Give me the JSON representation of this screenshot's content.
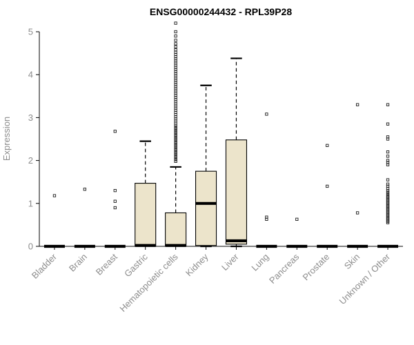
{
  "chart_data": {
    "type": "boxplot",
    "title": "ENSG00000244432 - RPL39P28",
    "ylabel": "Expression",
    "xlabel": "",
    "ylim": [
      0,
      5
    ],
    "yticks": [
      0,
      1,
      2,
      3,
      4,
      5
    ],
    "grid": false,
    "legend": false,
    "categories": [
      "Bladder",
      "Brain",
      "Breast",
      "Gastric",
      "Hematopoietic cells",
      "Kidney",
      "Liver",
      "Lung",
      "Pancreas",
      "Prostate",
      "Skin",
      "Unknown / Other"
    ],
    "style": {
      "box_fill": "#ece4cb",
      "box_stroke": "#000000",
      "axis_color": "#000000",
      "label_color": "#8c8c8c",
      "title_color": "#000000",
      "outlier_color": "#1a1a1a"
    },
    "boxes": [
      {
        "category": "Bladder",
        "q1": 0,
        "median": 0,
        "q3": 0,
        "whisker_low": 0,
        "whisker_high": 0,
        "outliers": [
          1.18
        ]
      },
      {
        "category": "Brain",
        "q1": 0,
        "median": 0,
        "q3": 0,
        "whisker_low": 0,
        "whisker_high": 0,
        "outliers": [
          1.33
        ]
      },
      {
        "category": "Breast",
        "q1": 0,
        "median": 0,
        "q3": 0,
        "whisker_low": 0,
        "whisker_high": 0,
        "outliers": [
          0.9,
          1.05,
          1.3,
          2.68
        ]
      },
      {
        "category": "Gastric",
        "q1": 0,
        "median": 0.02,
        "q3": 1.47,
        "whisker_low": 0,
        "whisker_high": 2.45,
        "outliers": []
      },
      {
        "category": "Hematopoietic cells",
        "q1": 0,
        "median": 0.02,
        "q3": 0.78,
        "whisker_low": 0,
        "whisker_high": 1.85,
        "outliers": [
          1.98,
          2.02,
          2.06,
          2.1,
          2.14,
          2.18,
          2.22,
          2.26,
          2.3,
          2.34,
          2.38,
          2.42,
          2.46,
          2.5,
          2.54,
          2.58,
          2.62,
          2.66,
          2.7,
          2.74,
          2.78,
          2.82,
          2.87,
          2.92,
          2.97,
          3.02,
          3.07,
          3.12,
          3.17,
          3.22,
          3.27,
          3.32,
          3.37,
          3.42,
          3.47,
          3.52,
          3.57,
          3.62,
          3.67,
          3.72,
          3.77,
          3.82,
          3.87,
          3.92,
          3.97,
          4.02,
          4.07,
          4.12,
          4.17,
          4.22,
          4.27,
          4.32,
          4.37,
          4.42,
          4.47,
          4.52,
          4.58,
          4.65,
          4.72,
          4.8,
          4.9,
          5.0,
          5.2
        ]
      },
      {
        "category": "Kidney",
        "q1": 0.02,
        "median": 1.0,
        "q3": 1.75,
        "whisker_low": 0,
        "whisker_high": 3.75,
        "outliers": []
      },
      {
        "category": "Liver",
        "q1": 0.05,
        "median": 0.13,
        "q3": 2.48,
        "whisker_low": 0,
        "whisker_high": 4.38,
        "outliers": []
      },
      {
        "category": "Lung",
        "q1": 0,
        "median": 0,
        "q3": 0,
        "whisker_low": 0,
        "whisker_high": 0,
        "outliers": [
          0.63,
          0.68,
          3.08
        ]
      },
      {
        "category": "Pancreas",
        "q1": 0,
        "median": 0,
        "q3": 0,
        "whisker_low": 0,
        "whisker_high": 0,
        "outliers": [
          0.63
        ]
      },
      {
        "category": "Prostate",
        "q1": 0,
        "median": 0,
        "q3": 0,
        "whisker_low": 0,
        "whisker_high": 0,
        "outliers": [
          1.4,
          2.35
        ]
      },
      {
        "category": "Skin",
        "q1": 0,
        "median": 0,
        "q3": 0,
        "whisker_low": 0,
        "whisker_high": 0,
        "outliers": [
          0.78,
          3.3
        ]
      },
      {
        "category": "Unknown / Other",
        "q1": 0,
        "median": 0,
        "q3": 0,
        "whisker_low": 0,
        "whisker_high": 0,
        "outliers": [
          0.55,
          0.58,
          0.61,
          0.64,
          0.67,
          0.7,
          0.73,
          0.76,
          0.79,
          0.82,
          0.85,
          0.88,
          0.91,
          0.94,
          0.97,
          1.0,
          1.03,
          1.06,
          1.09,
          1.12,
          1.15,
          1.18,
          1.22,
          1.26,
          1.3,
          1.35,
          1.4,
          1.45,
          1.55,
          1.9,
          1.95,
          2.0,
          2.1,
          2.2,
          2.5,
          2.55,
          2.85,
          3.3
        ]
      }
    ]
  }
}
